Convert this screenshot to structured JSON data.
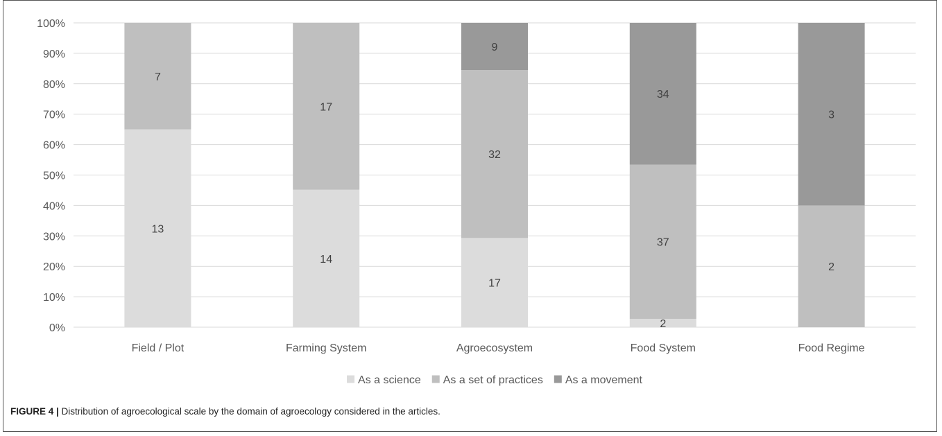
{
  "caption": {
    "label": "FIGURE 4 |",
    "text": " Distribution of agroecological scale by the domain of agroecology considered in the articles."
  },
  "chart_data": {
    "type": "bar",
    "stacked": true,
    "normalized_percent": true,
    "categories": [
      "Field / Plot",
      "Farming System",
      "Agroecosystem",
      "Food System",
      "Food Regime"
    ],
    "series": [
      {
        "name": "As a science",
        "values": [
          13,
          14,
          17,
          2,
          0
        ],
        "color": "#dcdcdc",
        "labels": [
          "13",
          "14",
          "17",
          "2",
          ""
        ]
      },
      {
        "name": "As a set of practices",
        "values": [
          7,
          17,
          32,
          37,
          2
        ],
        "color": "#bfbfbf",
        "labels": [
          "7",
          "17",
          "32",
          "37",
          "2"
        ]
      },
      {
        "name": "As a movement",
        "values": [
          0,
          0,
          9,
          34,
          3
        ],
        "color": "#999999",
        "labels": [
          "",
          "",
          "9",
          "34",
          "3"
        ]
      }
    ],
    "y_ticks": [
      "0%",
      "10%",
      "20%",
      "30%",
      "40%",
      "50%",
      "60%",
      "70%",
      "80%",
      "90%",
      "100%"
    ],
    "ylim": [
      0,
      100
    ],
    "grid": true,
    "legend_position": "bottom"
  }
}
